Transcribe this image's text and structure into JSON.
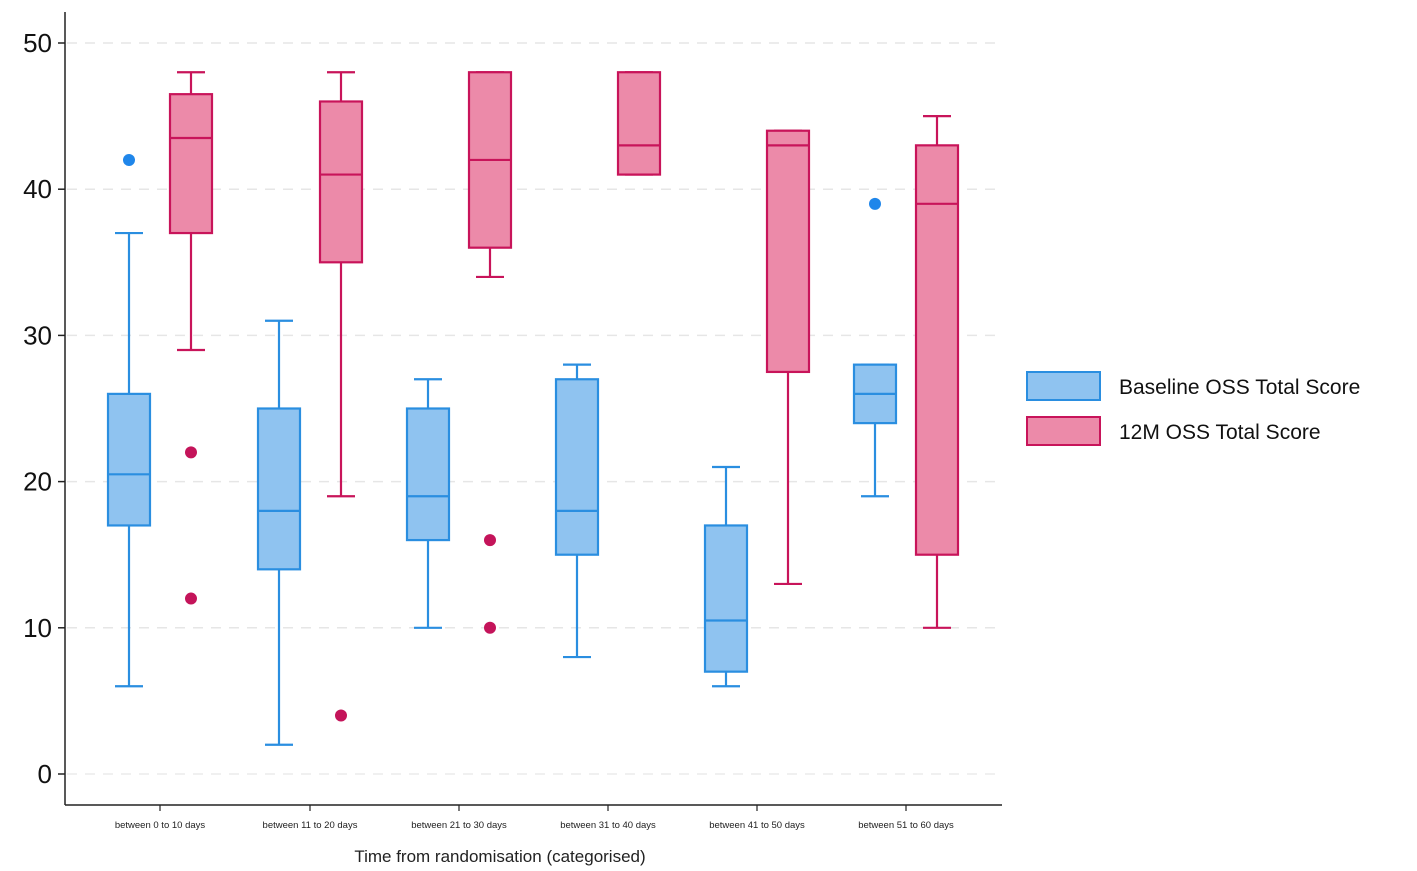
{
  "chart_data": {
    "type": "box",
    "title": "",
    "xlabel": "Time from randomisation (categorised)",
    "ylabel": "",
    "ylim": [
      0,
      50
    ],
    "yticks": [
      0,
      10,
      20,
      30,
      40,
      50
    ],
    "grid": true,
    "legend_position": "right",
    "categories": [
      "between 0 to 10 days",
      "between 11 to 20 days",
      "between 21 to 30 days",
      "between 31 to 40 days",
      "between 41 to 50 days",
      "between 51 to 60 days"
    ],
    "series": [
      {
        "name": "Baseline OSS Total Score",
        "fill": "#8fc3f0",
        "stroke": "#2a8ee0",
        "outlier_color": "#1f86ea",
        "boxes": [
          {
            "whisker_low": 6,
            "q1": 17,
            "median": 20.5,
            "q3": 26,
            "whisker_high": 37,
            "outliers": [
              42
            ]
          },
          {
            "whisker_low": 2,
            "q1": 14,
            "median": 18,
            "q3": 25,
            "whisker_high": 31,
            "outliers": []
          },
          {
            "whisker_low": 10,
            "q1": 16,
            "median": 19,
            "q3": 25,
            "whisker_high": 27,
            "outliers": []
          },
          {
            "whisker_low": 8,
            "q1": 15,
            "median": 18,
            "q3": 27,
            "whisker_high": 28,
            "outliers": []
          },
          {
            "whisker_low": 6,
            "q1": 7,
            "median": 10.5,
            "q3": 17,
            "whisker_high": 21,
            "outliers": []
          },
          {
            "whisker_low": 19,
            "q1": 24,
            "median": 26,
            "q3": 28,
            "whisker_high": 28,
            "outliers": [
              39
            ]
          }
        ]
      },
      {
        "name": "12M OSS Total Score",
        "fill": "#ec8aa9",
        "stroke": "#c8145a",
        "outlier_color": "#c4145a",
        "boxes": [
          {
            "whisker_low": 29,
            "q1": 37,
            "median": 43.5,
            "q3": 46.5,
            "whisker_high": 48,
            "outliers": [
              22,
              12
            ]
          },
          {
            "whisker_low": 19,
            "q1": 35,
            "median": 41,
            "q3": 46,
            "whisker_high": 48,
            "outliers": [
              4
            ]
          },
          {
            "whisker_low": 34,
            "q1": 36,
            "median": 42,
            "q3": 48,
            "whisker_high": 48,
            "outliers": [
              16,
              10
            ]
          },
          {
            "whisker_low": 41,
            "q1": 41,
            "median": 43,
            "q3": 48,
            "whisker_high": 48,
            "outliers": []
          },
          {
            "whisker_low": 13,
            "q1": 27.5,
            "median": 43,
            "q3": 44,
            "whisker_high": 44,
            "outliers": []
          },
          {
            "whisker_low": 10,
            "q1": 15,
            "median": 39,
            "q3": 43,
            "whisker_high": 45,
            "outliers": []
          }
        ]
      }
    ]
  }
}
